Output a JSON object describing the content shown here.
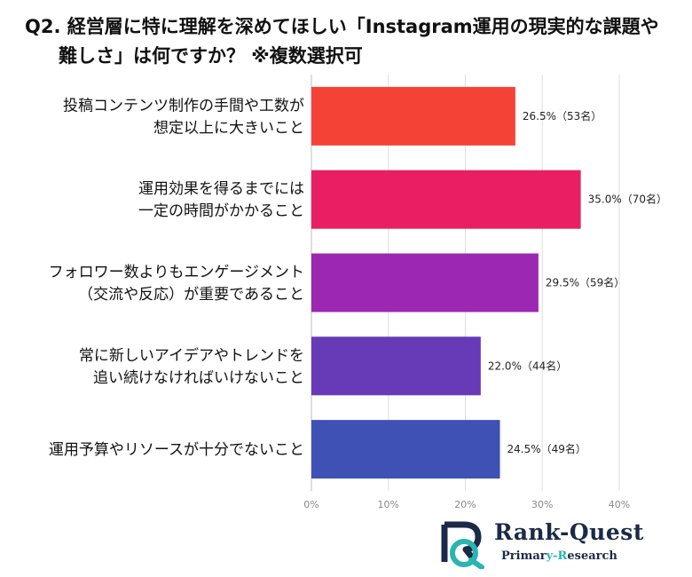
{
  "title": {
    "line1": "Q2. 経営層に特に理解を深めてほしい「Instagram運用の現実的な課題や",
    "line2": "難しさ」は何ですか？ ※複数選択可"
  },
  "chart_data": {
    "type": "bar",
    "orientation": "horizontal",
    "categories": [
      [
        "投稿コンテンツ制作の手間や工数が",
        "想定以上に大きいこと"
      ],
      [
        "運用効果を得るまでには",
        "一定の時間がかかること"
      ],
      [
        "フォロワー数よりもエンゲージメント",
        "（交流や反応）が重要であること"
      ],
      [
        "常に新しいアイデアやトレンドを",
        "追い続けなければいけないこと"
      ],
      [
        "運用予算やリソースが十分でないこと"
      ]
    ],
    "values": [
      26.5,
      35.0,
      29.5,
      22.0,
      24.5
    ],
    "value_labels": [
      "26.5%（53名）",
      "35.0%（70名）",
      "29.5%（59名）",
      "22.0%（44名）",
      "24.5%（49名）"
    ],
    "colors": [
      "#f44336",
      "#e91e63",
      "#9c27b0",
      "#673ab7",
      "#3f51b5"
    ],
    "x_ticks": [
      "0%",
      "10%",
      "20%",
      "30%",
      "40%"
    ],
    "xlim": [
      0,
      40
    ],
    "grid": true
  },
  "logo": {
    "name": "Rank-Quest",
    "sub_prefix": "Primar",
    "sub_highlight": "y-R",
    "sub_suffix": "esearch",
    "colors": {
      "navy": "#1b2a47",
      "teal": "#2bb5b0"
    }
  }
}
